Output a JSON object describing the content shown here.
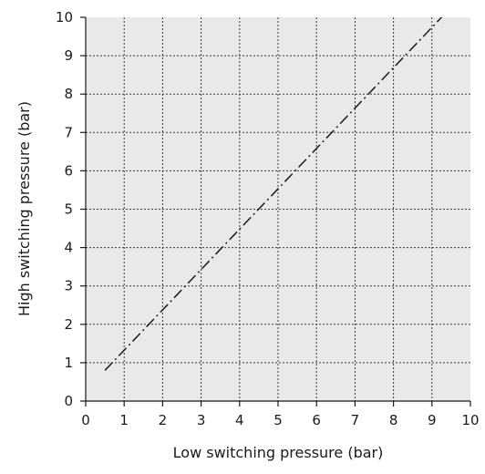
{
  "chart_data": {
    "type": "line",
    "title": "",
    "xlabel": "Low switching pressure (bar)",
    "ylabel": "High switching pressure (bar)",
    "xlim": [
      0,
      10
    ],
    "ylim": [
      0,
      10
    ],
    "x_ticks": [
      "0",
      "1",
      "2",
      "3",
      "4",
      "5",
      "6",
      "7",
      "8",
      "9",
      "10"
    ],
    "y_ticks": [
      "0",
      "1",
      "2",
      "3",
      "4",
      "5",
      "6",
      "7",
      "8",
      "9",
      "10"
    ],
    "grid": true,
    "legend": "none",
    "series": [
      {
        "line_style": "dash-dot",
        "color": "#1a1a1a",
        "x": [
          0.5,
          9.25
        ],
        "y": [
          0.8,
          10.0
        ]
      }
    ]
  },
  "colors": {
    "plot_background": "#e9e9e9",
    "grid": "#3a3a3a",
    "axis": "#1a1a1a"
  }
}
